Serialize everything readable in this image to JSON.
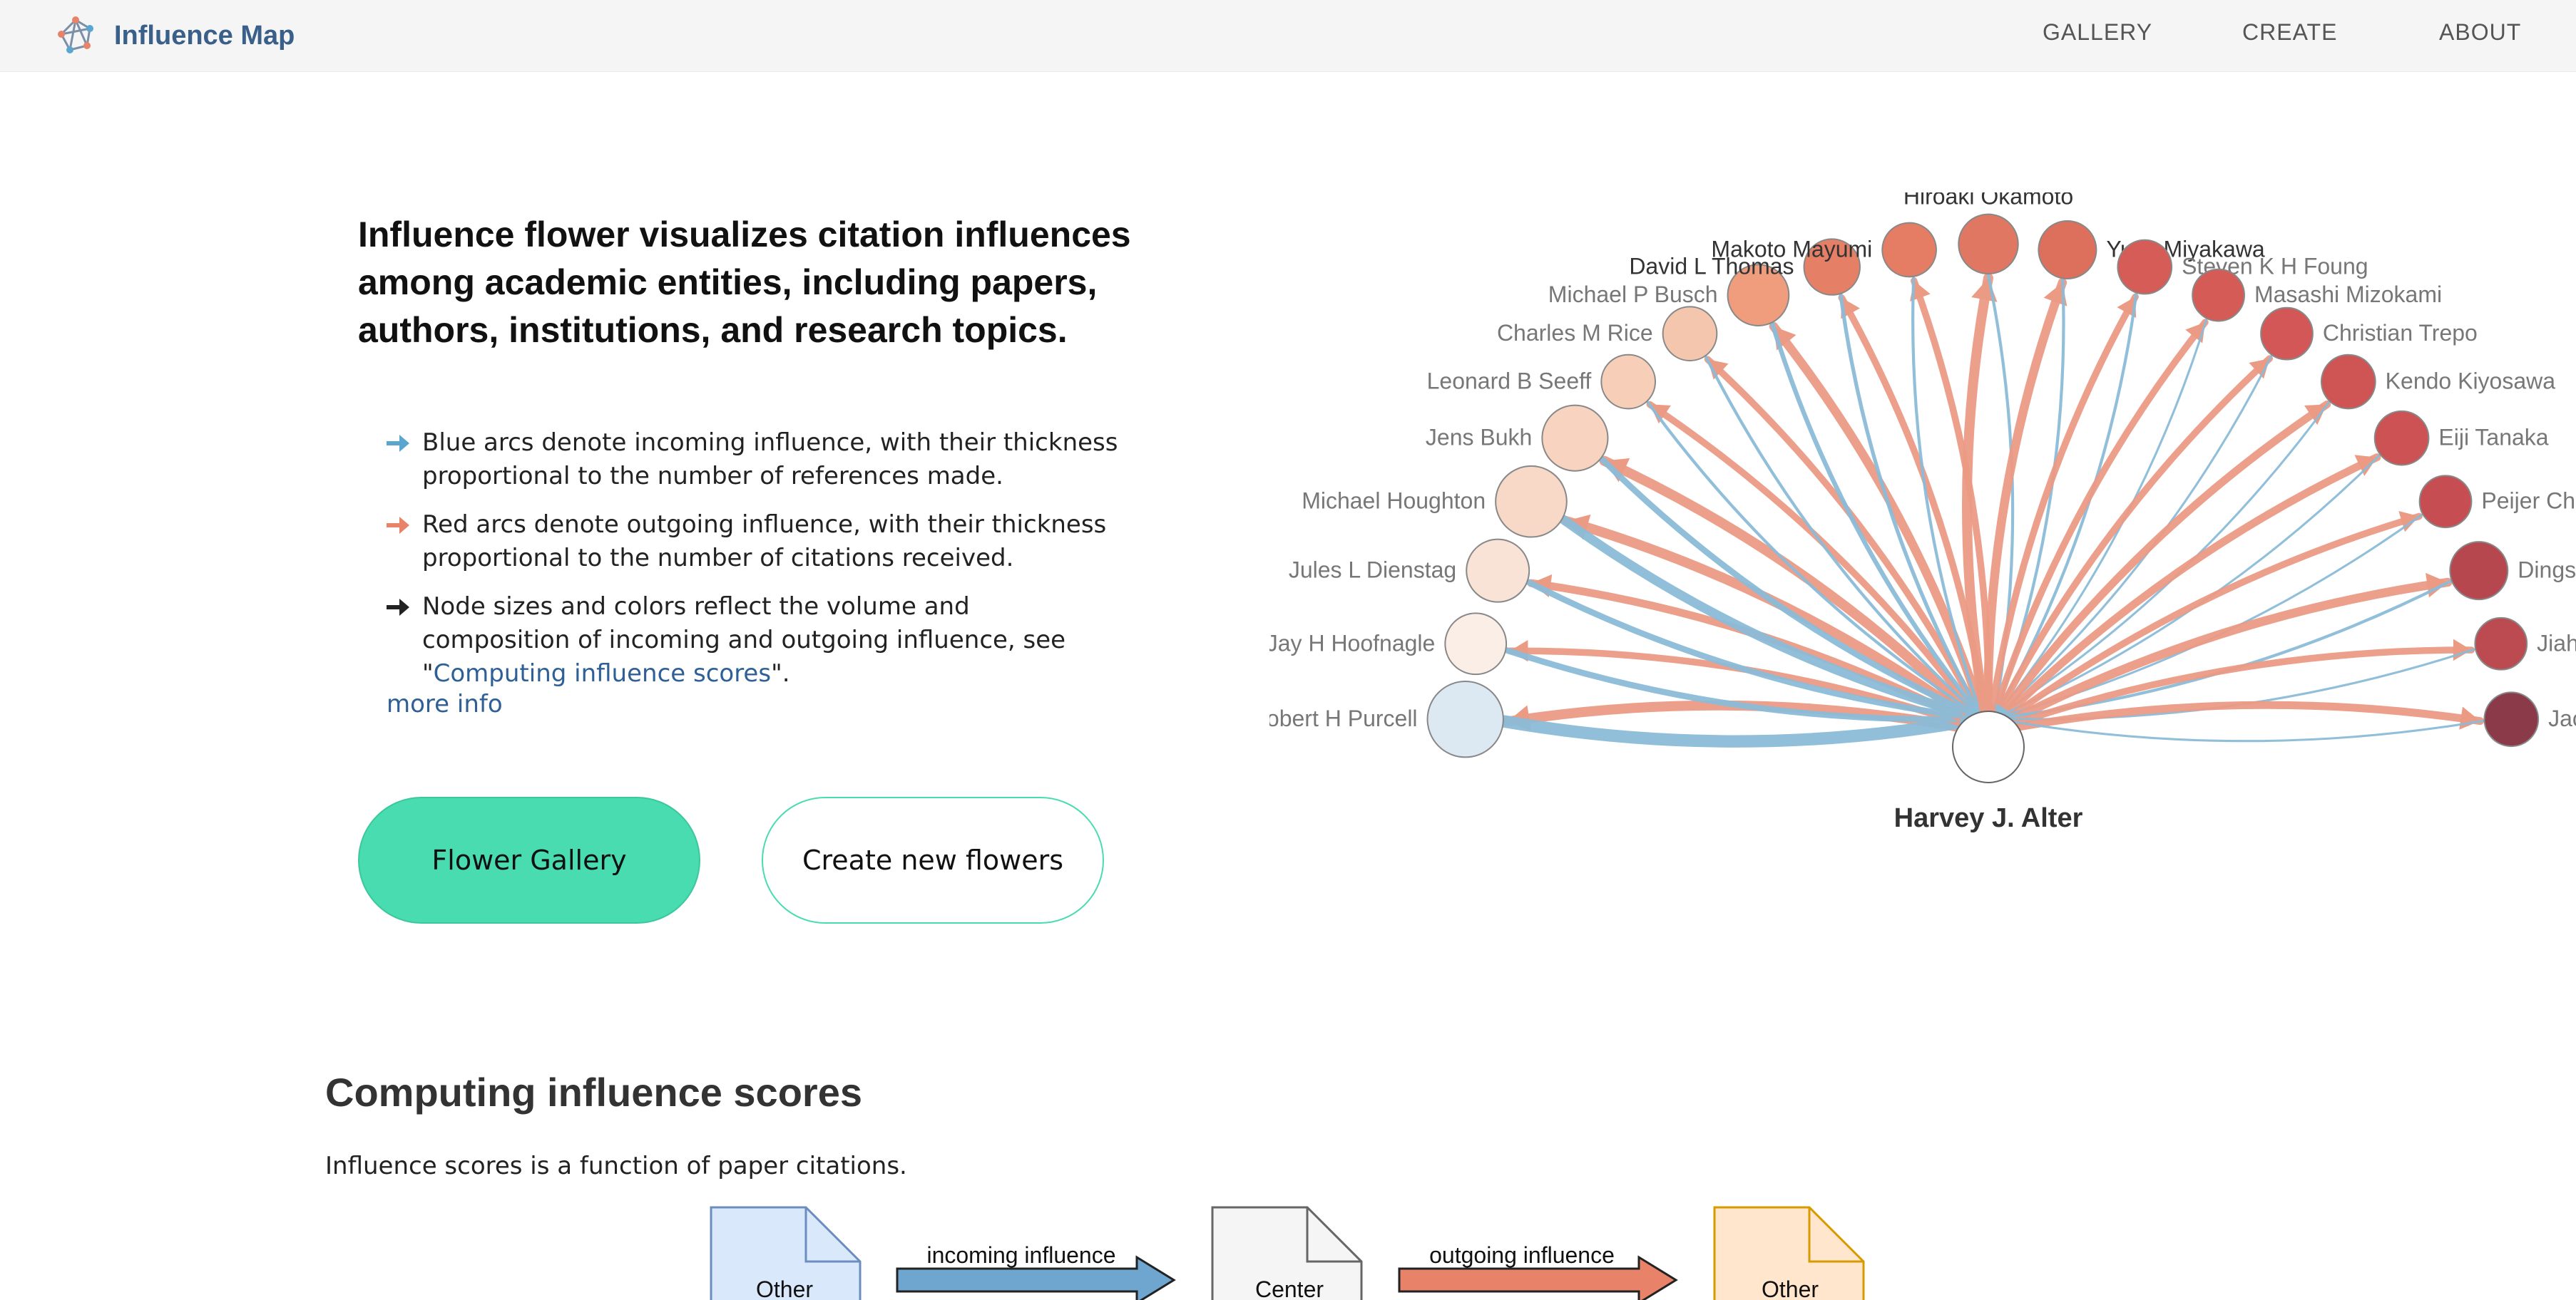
{
  "header": {
    "brand": "Influence Map",
    "logo_icon": "network-logo-icon",
    "nav": [
      "GALLERY",
      "CREATE",
      "ABOUT"
    ]
  },
  "hero": {
    "title": "Influence flower visualizes citation influences among academic entities, including papers, authors, institutions, and research topics.",
    "bullets": [
      {
        "icon": "blue-arrow-icon",
        "color": "#5aa6d1",
        "text": "Blue arcs denote incoming influence, with their thickness proportional to the number of references made."
      },
      {
        "icon": "red-arrow-icon",
        "color": "#e8836a",
        "text": "Red arcs denote outgoing influence, with their thickness proportional to the number of citations received."
      },
      {
        "icon": "black-arrow-icon",
        "color": "#222222",
        "text_before": "Node sizes and colors reflect the volume and composition of incoming and outgoing influence, see \"",
        "link": "Computing influence scores",
        "text_after": "\"."
      }
    ],
    "more_info": "more info",
    "buttons": {
      "gallery": "Flower Gallery",
      "create": "Create new flowers"
    }
  },
  "flower": {
    "center": "Harvey J. Alter",
    "colors": {
      "incoming": "#8bbcd8",
      "outgoing": "#eb9a84"
    },
    "nodes": [
      {
        "name": "Robert H Purcell",
        "color": "#dce9f3",
        "in": 14,
        "out": 8
      },
      {
        "name": "Jay H Hoofnagle",
        "color": "#fbeee6",
        "in": 6,
        "out": 5
      },
      {
        "name": "Jules L Dienstag",
        "color": "#f9e2d6",
        "in": 6,
        "out": 6
      },
      {
        "name": "Michael Houghton",
        "color": "#f8d8c7",
        "in": 10,
        "out": 8
      },
      {
        "name": "Jens Bukh",
        "color": "#f8d4c0",
        "in": 6,
        "out": 8
      },
      {
        "name": "Leonard B Seeff",
        "color": "#f7cfb9",
        "in": 2,
        "out": 5
      },
      {
        "name": "Charles M Rice",
        "color": "#f5c6ae",
        "in": 2,
        "out": 5
      },
      {
        "name": "Michael P Busch",
        "color": "#ef9d7d",
        "in": 4,
        "out": 7
      },
      {
        "name": "David L Thomas",
        "color": "#e57f66",
        "in": 3,
        "out": 5
      },
      {
        "name": "Makoto Mayumi",
        "color": "#e57c64",
        "in": 2,
        "out": 5
      },
      {
        "name": "Hiroaki Okamoto",
        "color": "#e07762",
        "in": 2,
        "out": 8
      },
      {
        "name": "Yuzo Miyakawa",
        "color": "#dd6f5d",
        "in": 2,
        "out": 7
      },
      {
        "name": "Steven K H Foung",
        "color": "#d65c58",
        "in": 2,
        "out": 5
      },
      {
        "name": "Masashi Mizokami",
        "color": "#d55b57",
        "in": 1,
        "out": 5
      },
      {
        "name": "Christian Trepo",
        "color": "#d35756",
        "in": 1,
        "out": 5
      },
      {
        "name": "Kendo Kiyosawa",
        "color": "#cf5454",
        "in": 1,
        "out": 6
      },
      {
        "name": "Eiji Tanaka",
        "color": "#cc5253",
        "in": 1,
        "out": 6
      },
      {
        "name": "Peijer Chen",
        "color": "#c64d52",
        "in": 1,
        "out": 5
      },
      {
        "name": "Dingshinn",
        "color": "#b6474f",
        "in": 2,
        "out": 7
      },
      {
        "name": "Jiahorng",
        "color": "#bc4a51",
        "in": 1,
        "out": 5
      },
      {
        "name": "Jack T S",
        "color": "#8b3a4a",
        "in": 1,
        "out": 6
      }
    ]
  },
  "section": {
    "title": "Computing influence scores",
    "text": "Influence scores is a function of paper citations."
  },
  "diagram": {
    "docs": [
      {
        "label": "Other",
        "fill": "#dae8fc",
        "stroke": "#6c8ebf"
      },
      {
        "label": "Center",
        "fill": "#f5f5f5",
        "stroke": "#666666"
      },
      {
        "label": "Other",
        "fill": "#ffe6cc",
        "stroke": "#d79b00"
      }
    ],
    "arrows": [
      {
        "label": "incoming influence",
        "fill": "#6ea6cf"
      },
      {
        "label": "outgoing influence",
        "fill": "#e8836a"
      }
    ]
  }
}
